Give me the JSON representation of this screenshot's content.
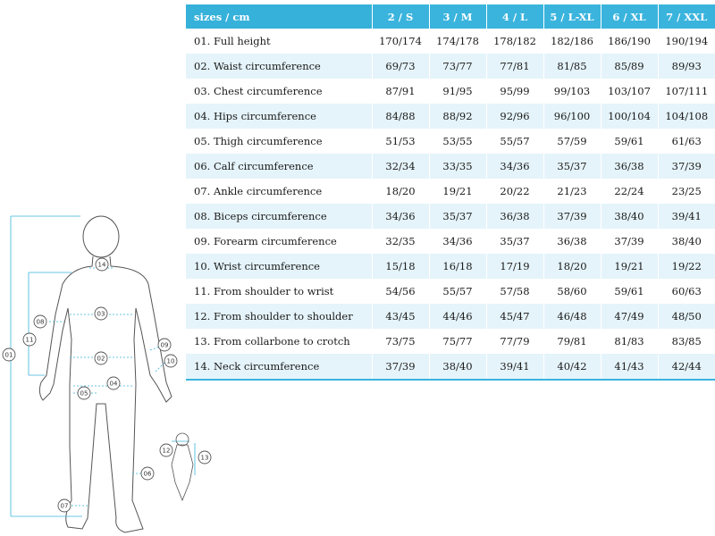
{
  "table": {
    "header": [
      "sizes / cm",
      "2 / S",
      "3 / M",
      "4 / L",
      "5 / L-XL",
      "6 / XL",
      "7 / XXL"
    ],
    "rows": [
      {
        "label": "01. Full height",
        "values": [
          "170/174",
          "174/178",
          "178/182",
          "182/186",
          "186/190",
          "190/194"
        ]
      },
      {
        "label": "02. Waist circumference",
        "values": [
          "69/73",
          "73/77",
          "77/81",
          "81/85",
          "85/89",
          "89/93"
        ]
      },
      {
        "label": "03. Chest circumference",
        "values": [
          "87/91",
          "91/95",
          "95/99",
          "99/103",
          "103/107",
          "107/111"
        ]
      },
      {
        "label": "04. Hips circumference",
        "values": [
          "84/88",
          "88/92",
          "92/96",
          "96/100",
          "100/104",
          "104/108"
        ]
      },
      {
        "label": "05. Thigh circumference",
        "values": [
          "51/53",
          "53/55",
          "55/57",
          "57/59",
          "59/61",
          "61/63"
        ]
      },
      {
        "label": "06. Calf circumference",
        "values": [
          "32/34",
          "33/35",
          "34/36",
          "35/37",
          "36/38",
          "37/39"
        ]
      },
      {
        "label": "07. Ankle circumference",
        "values": [
          "18/20",
          "19/21",
          "20/22",
          "21/23",
          "22/24",
          "23/25"
        ]
      },
      {
        "label": "08. Biceps circumference",
        "values": [
          "34/36",
          "35/37",
          "36/38",
          "37/39",
          "38/40",
          "39/41"
        ]
      },
      {
        "label": "09. Forearm circumference",
        "values": [
          "32/35",
          "34/36",
          "35/37",
          "36/38",
          "37/39",
          "38/40"
        ]
      },
      {
        "label": "10. Wrist circumference",
        "values": [
          "15/18",
          "16/18",
          "17/19",
          "18/20",
          "19/21",
          "19/22"
        ]
      },
      {
        "label": "11. From shoulder to wrist",
        "values": [
          "54/56",
          "55/57",
          "57/58",
          "58/60",
          "59/61",
          "60/63"
        ]
      },
      {
        "label": "12. From shoulder to shoulder",
        "values": [
          "43/45",
          "44/46",
          "45/47",
          "46/48",
          "47/49",
          "48/50"
        ]
      },
      {
        "label": "13. From collarbone to crotch",
        "values": [
          "73/75",
          "75/77",
          "77/79",
          "79/81",
          "81/83",
          "83/85"
        ]
      },
      {
        "label": "14. Neck circumference",
        "values": [
          "37/39",
          "38/40",
          "39/41",
          "40/42",
          "41/43",
          "42/44"
        ]
      }
    ]
  },
  "figure": {
    "markers": [
      "01",
      "02",
      "03",
      "04",
      "05",
      "06",
      "07",
      "08",
      "09",
      "10",
      "11",
      "12",
      "13",
      "14"
    ],
    "accent": "#3ab4dd",
    "outline": "#555555"
  }
}
